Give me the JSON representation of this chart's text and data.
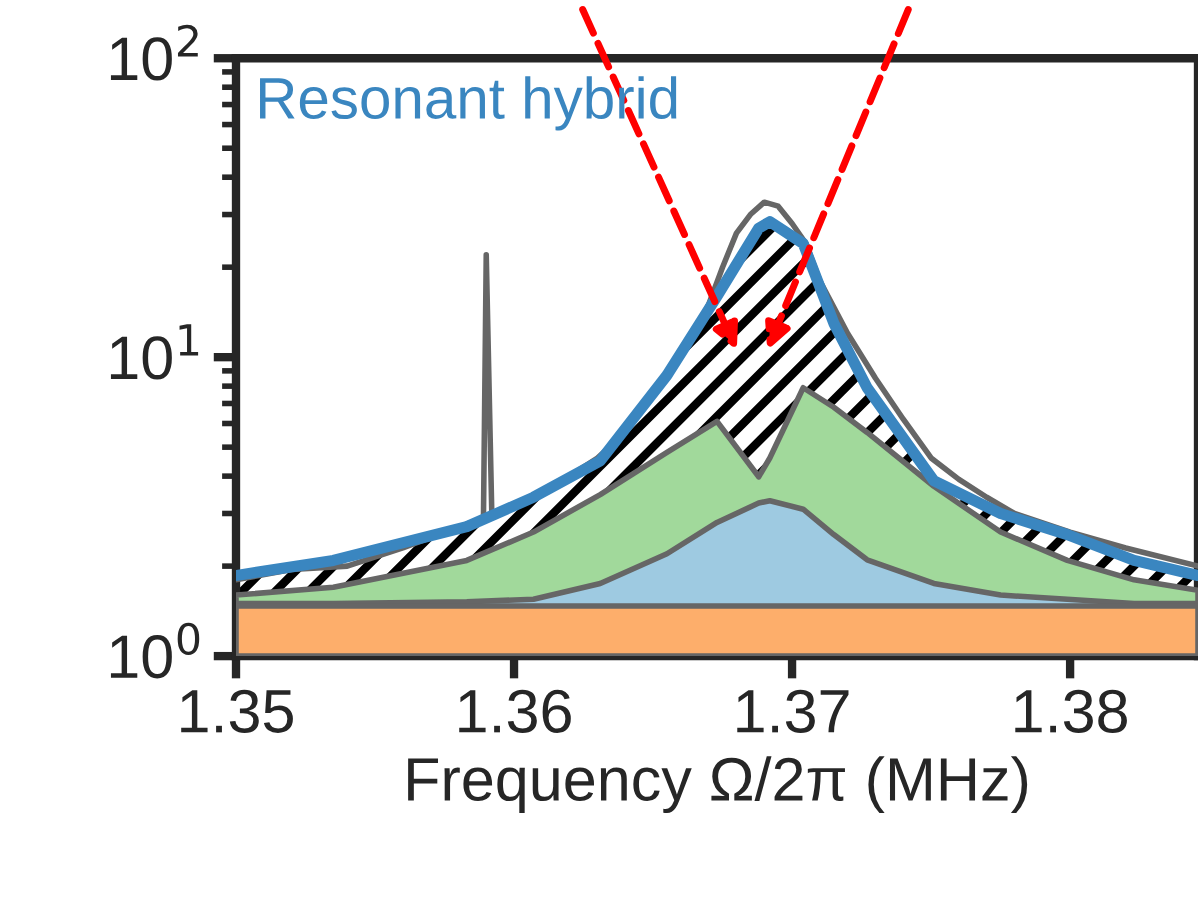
{
  "chart_data": {
    "type": "line",
    "xlabel": "Frequency Ω/2π (MHz)",
    "xlim": [
      1.35,
      1.3846
    ],
    "xticks": [
      1.35,
      1.36,
      1.37,
      1.38
    ],
    "ylim": [
      1,
      100
    ],
    "yticks": [
      {
        "value": 1,
        "label": "10$^{0}$"
      },
      {
        "value": 10,
        "label": "10$^{1}$"
      },
      {
        "value": 100,
        "label": "10$^{2}$"
      }
    ],
    "log": "y",
    "grid": false,
    "legend": false,
    "marker": "none",
    "line_style": "solid",
    "x": [
      1.35,
      1.3535,
      1.3583,
      1.3607,
      1.3631,
      1.3655,
      1.3673,
      1.3688,
      1.3692,
      1.3704,
      1.3715,
      1.3727,
      1.3751,
      1.3775,
      1.3799,
      1.3823,
      1.3846
    ],
    "series": [
      {
        "type": "area",
        "color": "#fdae6b",
        "values": [
          1.47,
          1.47,
          1.47,
          1.47,
          1.47,
          1.47,
          1.47,
          1.47,
          1.47,
          1.47,
          1.47,
          1.47,
          1.47,
          1.47,
          1.47,
          1.47,
          1.47
        ]
      },
      {
        "type": "area",
        "color": "#9ecae1",
        "values": [
          1.5,
          1.5,
          1.52,
          1.55,
          1.75,
          2.2,
          2.8,
          3.25,
          3.31,
          3.1,
          2.55,
          2.1,
          1.75,
          1.6,
          1.55,
          1.5,
          1.5
        ]
      },
      {
        "type": "area",
        "color": "#a1d99b",
        "values": [
          1.6,
          1.7,
          2.09,
          2.6,
          3.47,
          4.8,
          6.1,
          3.98,
          4.6,
          7.9,
          6.8,
          5.6,
          3.7,
          2.6,
          2.09,
          1.8,
          1.66
        ]
      },
      {
        "color": "#666666",
        "x": [
          1.35,
          1.352,
          1.354,
          1.356,
          1.358,
          1.3589,
          1.359,
          1.3592,
          1.361,
          1.363,
          1.364,
          1.365,
          1.366,
          1.367,
          1.3675,
          1.368,
          1.3685,
          1.369,
          1.3695,
          1.37,
          1.3705,
          1.371,
          1.372,
          1.373,
          1.374,
          1.375,
          1.376,
          1.377,
          1.378,
          1.38,
          1.382,
          1.3846
        ],
        "values": [
          1.8,
          1.95,
          2.0,
          2.3,
          2.7,
          2.9,
          22,
          3.0,
          3.5,
          4.6,
          5.6,
          7.5,
          10,
          15,
          20,
          26,
          30,
          33,
          32,
          28,
          24,
          18,
          12,
          8.5,
          6.2,
          4.6,
          3.9,
          3.4,
          3.0,
          2.6,
          2.3,
          2.0
        ]
      },
      {
        "type": "area",
        "name": "Resonant hybrid",
        "color": "#3a86c0",
        "values": [
          1.86,
          2.09,
          2.71,
          3.4,
          4.5,
          8.7,
          16,
          27,
          28.4,
          24,
          13,
          7.9,
          3.86,
          3.0,
          2.55,
          2.09,
          1.86
        ]
      }
    ]
  }
}
